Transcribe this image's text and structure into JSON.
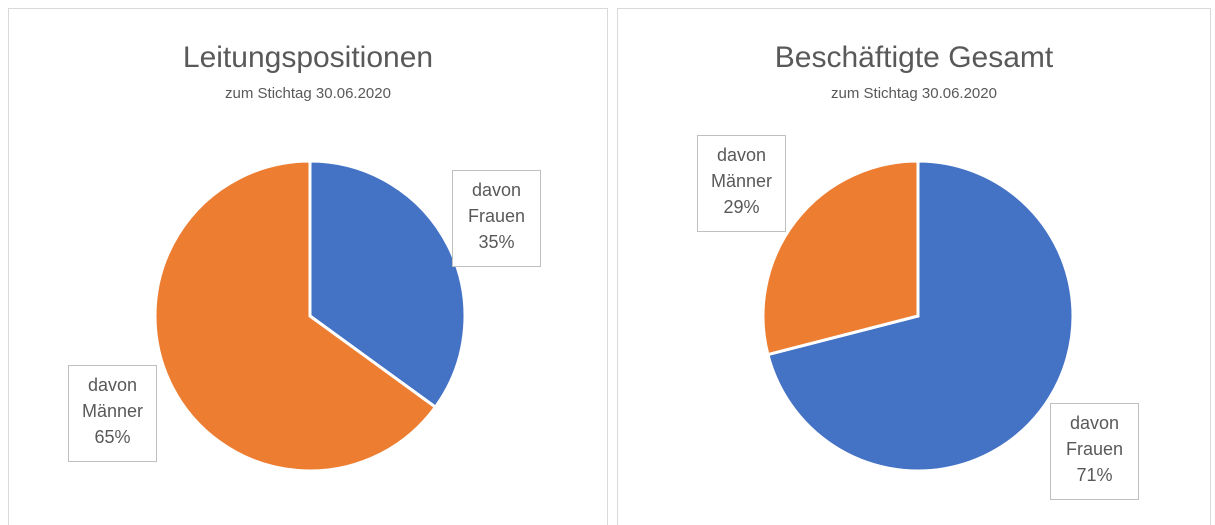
{
  "chart_data": [
    {
      "type": "pie",
      "title": "Leitungspositionen",
      "subtitle": "zum Stichtag 30.06.2020",
      "categories": [
        "davon Frauen",
        "davon Männer"
      ],
      "values": [
        35,
        65
      ],
      "value_labels": [
        "35%",
        "65%"
      ],
      "colors": [
        "#4472c4",
        "#ed7d31"
      ]
    },
    {
      "type": "pie",
      "title": "Beschäftigte Gesamt",
      "subtitle": "zum Stichtag 30.06.2020",
      "categories": [
        "davon Frauen",
        "davon Männer"
      ],
      "values": [
        71,
        29
      ],
      "value_labels": [
        "71%",
        "29%"
      ],
      "colors": [
        "#4472c4",
        "#ed7d31"
      ]
    }
  ]
}
